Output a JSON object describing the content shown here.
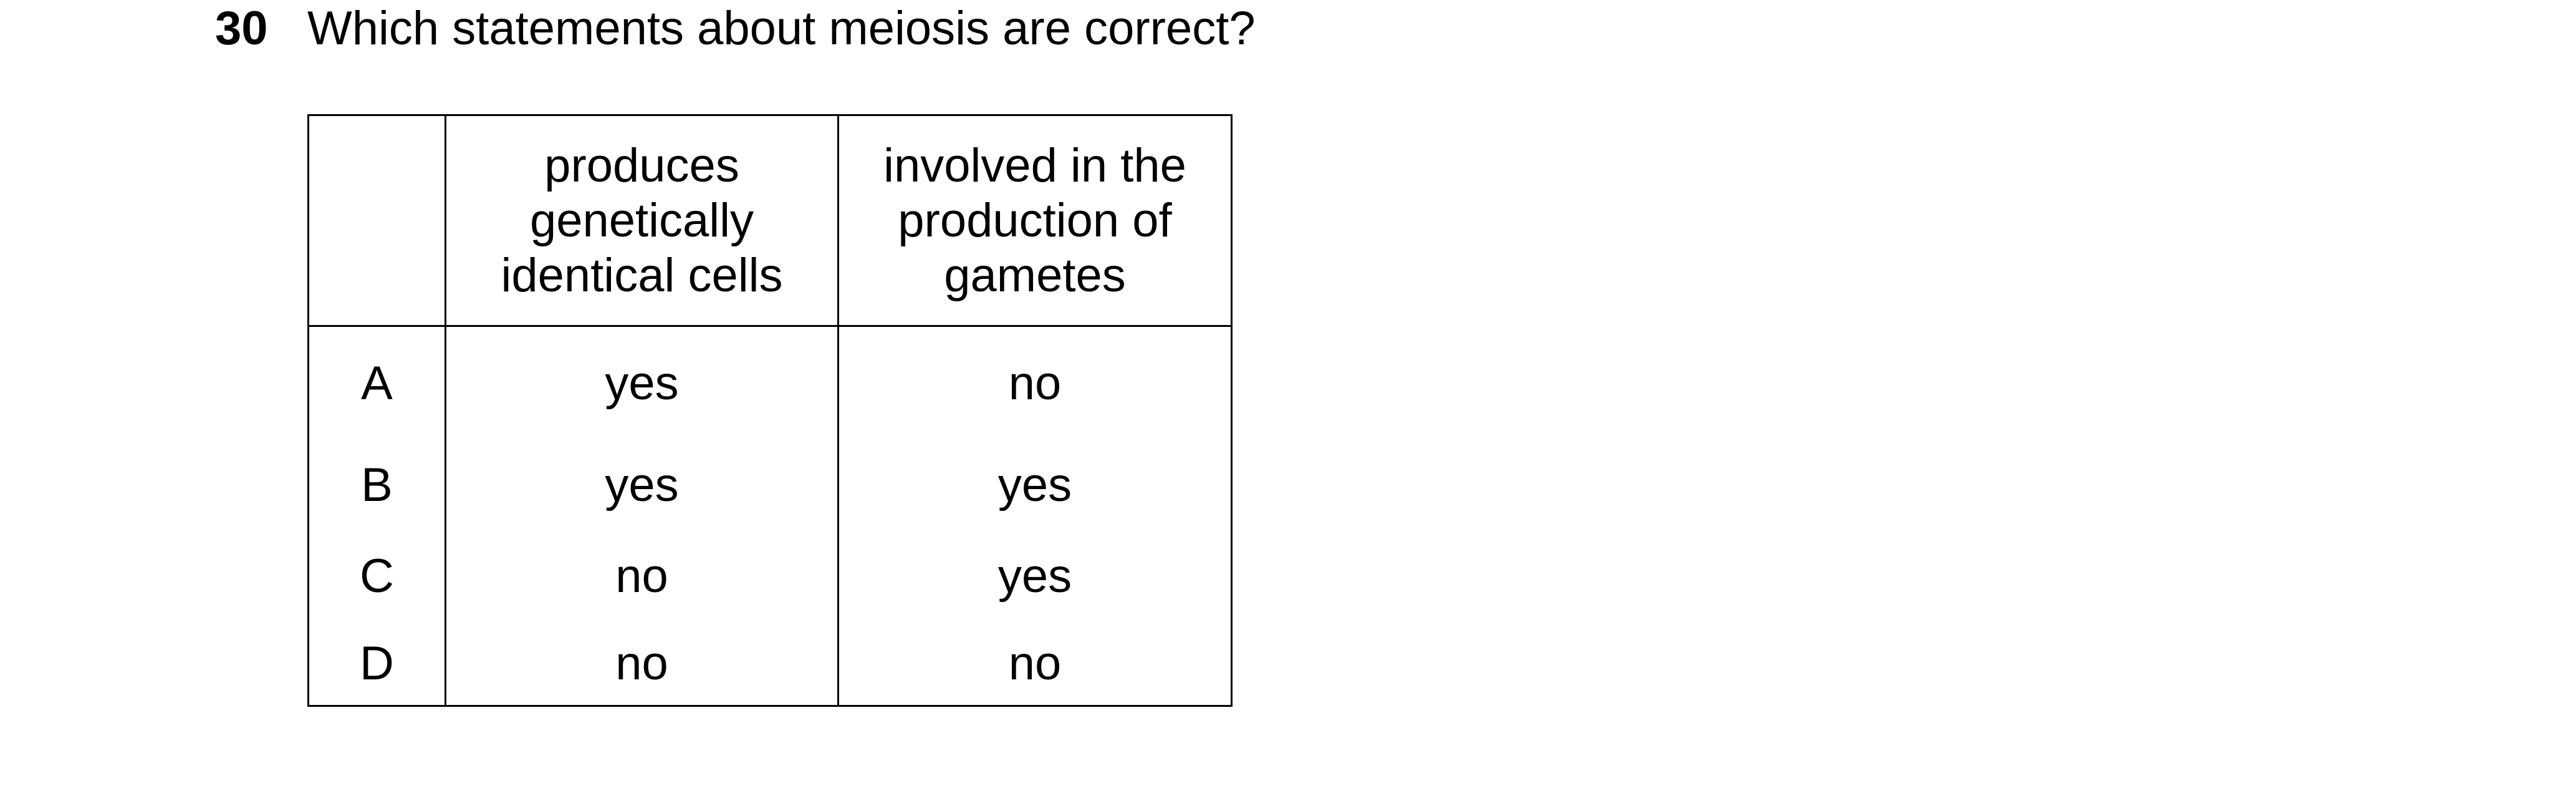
{
  "question": {
    "number": "30",
    "text": "Which statements about meiosis are correct?"
  },
  "table": {
    "headers": [
      "",
      "produces genetically identical cells",
      "involved in the production of gametes"
    ],
    "header_lines": {
      "col1": [
        "produces",
        "genetically",
        "identical cells"
      ],
      "col2": [
        "involved in the",
        "production of",
        "gametes"
      ]
    },
    "rows": [
      {
        "option": "A",
        "col1": "yes",
        "col2": "no"
      },
      {
        "option": "B",
        "col1": "yes",
        "col2": "yes"
      },
      {
        "option": "C",
        "col1": "no",
        "col2": "yes"
      },
      {
        "option": "D",
        "col1": "no",
        "col2": "no"
      }
    ]
  }
}
